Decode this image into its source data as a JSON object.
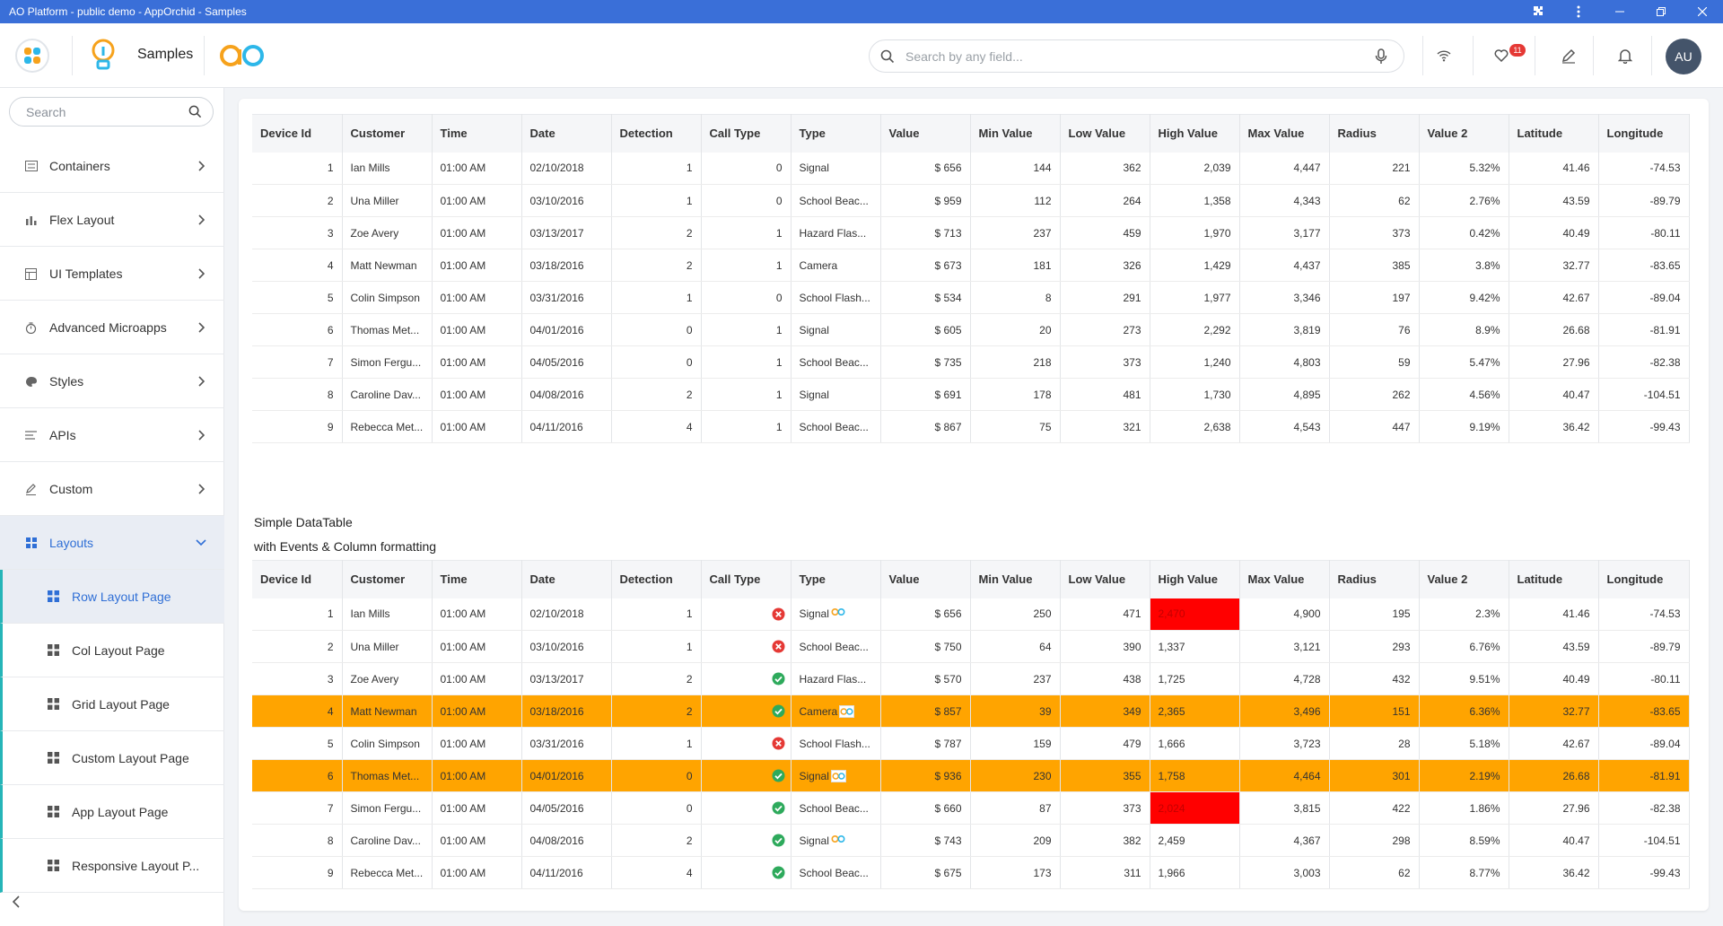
{
  "titlebar": {
    "title": "AO Platform - public demo - AppOrchid - Samples"
  },
  "header": {
    "app_title": "Samples",
    "search_placeholder": "Search by any field...",
    "notification_count": "11",
    "user_initials": "AU"
  },
  "colors": {
    "accent": "#2f6fd6",
    "titlebar": "#3a6fd8",
    "highlight_row": "#ffa400",
    "alert_cell": "#ff0000",
    "teal": "#25b5b8"
  },
  "sidebar": {
    "search_placeholder": "Search",
    "items": [
      {
        "label": "Containers",
        "icon": "containers-icon"
      },
      {
        "label": "Flex Layout",
        "icon": "bar-chart-icon"
      },
      {
        "label": "UI Templates",
        "icon": "template-icon"
      },
      {
        "label": "Advanced Microapps",
        "icon": "timer-icon"
      },
      {
        "label": "Styles",
        "icon": "palette-icon"
      },
      {
        "label": "APIs",
        "icon": "api-icon"
      },
      {
        "label": "Custom",
        "icon": "pencil-icon"
      },
      {
        "label": "Layouts",
        "icon": "grid-icon"
      }
    ],
    "sub_items": [
      {
        "label": "Row Layout Page"
      },
      {
        "label": "Col Layout Page"
      },
      {
        "label": "Grid Layout Page"
      },
      {
        "label": "Custom Layout Page"
      },
      {
        "label": "App Layout Page"
      },
      {
        "label": "Responsive Layout P..."
      }
    ]
  },
  "table_headers": [
    "Device Id",
    "Customer",
    "Time",
    "Date",
    "Detection",
    "Call Type",
    "Type",
    "Value",
    "Min Value",
    "Low Value",
    "High Value",
    "Max Value",
    "Radius",
    "Value 2",
    "Latitude",
    "Longitude"
  ],
  "table1": {
    "rows": [
      [
        "1",
        "Ian Mills",
        "01:00 AM",
        "02/10/2018",
        "1",
        "0",
        "Signal",
        "$ 656",
        "144",
        "362",
        "2,039",
        "4,447",
        "221",
        "5.32%",
        "41.46",
        "-74.53"
      ],
      [
        "2",
        "Una Miller",
        "01:00 AM",
        "03/10/2016",
        "1",
        "0",
        "School Beac...",
        "$ 959",
        "112",
        "264",
        "1,358",
        "4,343",
        "62",
        "2.76%",
        "43.59",
        "-89.79"
      ],
      [
        "3",
        "Zoe Avery",
        "01:00 AM",
        "03/13/2017",
        "2",
        "1",
        "Hazard Flas...",
        "$ 713",
        "237",
        "459",
        "1,970",
        "3,177",
        "373",
        "0.42%",
        "40.49",
        "-80.11"
      ],
      [
        "4",
        "Matt Newman",
        "01:00 AM",
        "03/18/2016",
        "2",
        "1",
        "Camera",
        "$ 673",
        "181",
        "326",
        "1,429",
        "4,437",
        "385",
        "3.8%",
        "32.77",
        "-83.65"
      ],
      [
        "5",
        "Colin Simpson",
        "01:00 AM",
        "03/31/2016",
        "1",
        "0",
        "School Flash...",
        "$ 534",
        "8",
        "291",
        "1,977",
        "3,346",
        "197",
        "9.42%",
        "42.67",
        "-89.04"
      ],
      [
        "6",
        "Thomas Met...",
        "01:00 AM",
        "04/01/2016",
        "0",
        "1",
        "Signal",
        "$ 605",
        "20",
        "273",
        "2,292",
        "3,819",
        "76",
        "8.9%",
        "26.68",
        "-81.91"
      ],
      [
        "7",
        "Simon Fergu...",
        "01:00 AM",
        "04/05/2016",
        "0",
        "1",
        "School Beac...",
        "$ 735",
        "218",
        "373",
        "1,240",
        "4,803",
        "59",
        "5.47%",
        "27.96",
        "-82.38"
      ],
      [
        "8",
        "Caroline Dav...",
        "01:00 AM",
        "04/08/2016",
        "2",
        "1",
        "Signal",
        "$ 691",
        "178",
        "481",
        "1,730",
        "4,895",
        "262",
        "4.56%",
        "40.47",
        "-104.51"
      ],
      [
        "9",
        "Rebecca Met...",
        "01:00 AM",
        "04/11/2016",
        "4",
        "1",
        "School Beac...",
        "$ 867",
        "75",
        "321",
        "2,638",
        "4,543",
        "447",
        "9.19%",
        "36.42",
        "-99.43"
      ]
    ]
  },
  "table2": {
    "title": "Simple DataTable",
    "subtitle": "with Events & Column formatting",
    "rows": [
      {
        "cells": [
          "1",
          "Ian Mills",
          "01:00 AM",
          "02/10/2018",
          "1",
          "error",
          "Signal",
          "$ 656",
          "250",
          "471",
          "2,470",
          "4,900",
          "195",
          "2.3%",
          "41.46",
          "-74.53"
        ],
        "ao": "plain",
        "highlight": false,
        "red_high": true
      },
      {
        "cells": [
          "2",
          "Una Miller",
          "01:00 AM",
          "03/10/2016",
          "1",
          "error",
          "School Beac...",
          "$ 750",
          "64",
          "390",
          "1,337",
          "3,121",
          "293",
          "6.76%",
          "43.59",
          "-89.79"
        ],
        "ao": "none",
        "highlight": false,
        "red_high": false
      },
      {
        "cells": [
          "3",
          "Zoe Avery",
          "01:00 AM",
          "03/13/2017",
          "2",
          "ok",
          "Hazard Flas...",
          "$ 570",
          "237",
          "438",
          "1,725",
          "4,728",
          "432",
          "9.51%",
          "40.49",
          "-80.11"
        ],
        "ao": "none",
        "highlight": false,
        "red_high": false
      },
      {
        "cells": [
          "4",
          "Matt Newman",
          "01:00 AM",
          "03/18/2016",
          "2",
          "ok",
          "Camera",
          "$ 857",
          "39",
          "349",
          "2,365",
          "3,496",
          "151",
          "6.36%",
          "32.77",
          "-83.65"
        ],
        "ao": "box",
        "highlight": true,
        "red_high": false
      },
      {
        "cells": [
          "5",
          "Colin Simpson",
          "01:00 AM",
          "03/31/2016",
          "1",
          "error",
          "School Flash...",
          "$ 787",
          "159",
          "479",
          "1,666",
          "3,723",
          "28",
          "5.18%",
          "42.67",
          "-89.04"
        ],
        "ao": "none",
        "highlight": false,
        "red_high": false
      },
      {
        "cells": [
          "6",
          "Thomas Met...",
          "01:00 AM",
          "04/01/2016",
          "0",
          "ok",
          "Signal",
          "$ 936",
          "230",
          "355",
          "1,758",
          "4,464",
          "301",
          "2.19%",
          "26.68",
          "-81.91"
        ],
        "ao": "box",
        "highlight": true,
        "red_high": false
      },
      {
        "cells": [
          "7",
          "Simon Fergu...",
          "01:00 AM",
          "04/05/2016",
          "0",
          "ok",
          "School Beac...",
          "$ 660",
          "87",
          "373",
          "2,024",
          "3,815",
          "422",
          "1.86%",
          "27.96",
          "-82.38"
        ],
        "ao": "none",
        "highlight": false,
        "red_high": true
      },
      {
        "cells": [
          "8",
          "Caroline Dav...",
          "01:00 AM",
          "04/08/2016",
          "2",
          "ok",
          "Signal",
          "$ 743",
          "209",
          "382",
          "2,459",
          "4,367",
          "298",
          "8.59%",
          "40.47",
          "-104.51"
        ],
        "ao": "plain",
        "highlight": false,
        "red_high": false
      },
      {
        "cells": [
          "9",
          "Rebecca Met...",
          "01:00 AM",
          "04/11/2016",
          "4",
          "ok",
          "School Beac...",
          "$ 675",
          "173",
          "311",
          "1,966",
          "3,003",
          "62",
          "8.77%",
          "36.42",
          "-99.43"
        ],
        "ao": "none",
        "highlight": false,
        "red_high": false
      }
    ]
  }
}
